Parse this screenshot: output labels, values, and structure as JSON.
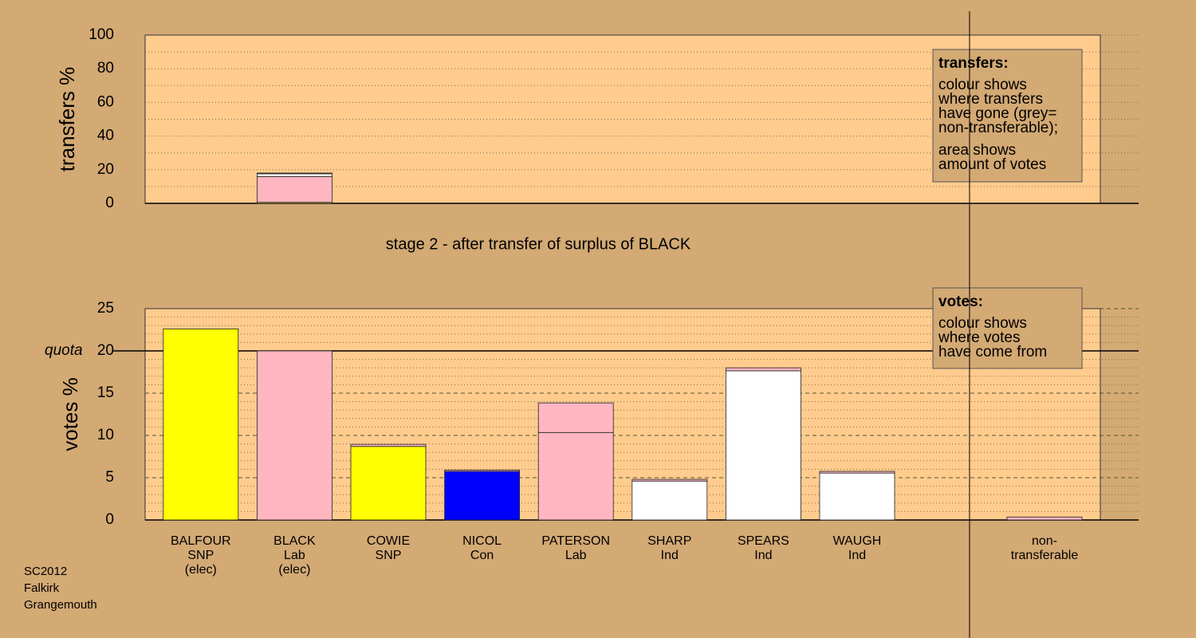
{
  "chart_data": [
    {
      "type": "bar",
      "ylabel": "transfers %",
      "ylim": [
        0,
        100
      ],
      "yticks": [
        0,
        20,
        40,
        60,
        80,
        100
      ],
      "grid_minor": [
        10,
        30,
        50,
        70,
        90
      ],
      "categories": [
        "BLACK"
      ],
      "series": [
        {
          "color": "#ffff00",
          "values": [
            0.6
          ]
        },
        {
          "color": "#ffb6c1",
          "values": [
            15.3
          ]
        },
        {
          "color": "#ffffff",
          "values": [
            1.7
          ]
        },
        {
          "color": "#aaaaaa",
          "values": [
            0.4
          ]
        }
      ],
      "legend": {
        "title": "transfers:",
        "paragraphs": [
          [
            "colour shows",
            "where transfers",
            "have gone (grey=",
            "non-transferable);"
          ],
          [
            "area shows",
            "amount of votes"
          ]
        ]
      }
    },
    {
      "type": "bar",
      "title": "stage 2 - after transfer of surplus of BLACK",
      "ylabel": "votes %",
      "ylim": [
        0,
        25
      ],
      "yticks": [
        0,
        5,
        10,
        15,
        20,
        25
      ],
      "grid_minor": [
        1,
        2,
        3,
        4,
        6,
        7,
        8,
        9,
        11,
        12,
        13,
        14,
        16,
        17,
        18,
        19,
        21,
        22,
        23,
        24
      ],
      "quota": {
        "value": 20,
        "label": "quota"
      },
      "categories": [
        "BALFOUR",
        "BLACK",
        "COWIE",
        "NICOL",
        "PATERSON",
        "SHARP",
        "SPEARS",
        "WAUGH"
      ],
      "parties": [
        "SNP",
        "Lab",
        "SNP",
        "Con",
        "Lab",
        "Ind",
        "Ind",
        "Ind"
      ],
      "status": [
        "(elec)",
        "(elec)",
        null,
        null,
        null,
        null,
        null,
        null
      ],
      "series": [
        {
          "colors": [
            "#ffff00",
            "#ffb6c1",
            "#ffff00",
            "#0000ff",
            "#ffb6c1",
            "#ffffff",
            "#ffffff",
            "#ffffff"
          ],
          "values": [
            22.6,
            20.0,
            8.7,
            5.75,
            10.35,
            4.6,
            17.65,
            5.55
          ]
        },
        {
          "color": "#ffb6c1",
          "values": [
            0,
            0,
            0.25,
            0.15,
            3.5,
            0.2,
            0.35,
            0.2
          ]
        }
      ],
      "nontransferable": {
        "label": [
          "non-",
          "transferable"
        ],
        "value": 0.35,
        "color": "#ffb6c1"
      },
      "legend": {
        "title": "votes:",
        "paragraphs": [
          [
            "colour shows",
            "where votes",
            "have come from"
          ]
        ]
      }
    }
  ],
  "footer": [
    "SC2012",
    "Falkirk",
    "Grangemouth"
  ]
}
